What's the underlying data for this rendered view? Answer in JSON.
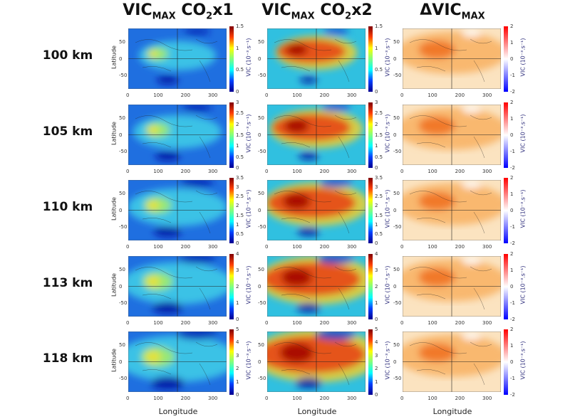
{
  "columns": [
    {
      "title": "VIC",
      "sub": "MAX",
      "suffix": " CO",
      "sub2": "2",
      "suffix2": "x1"
    },
    {
      "title": "VIC",
      "sub": "MAX",
      "suffix": " CO",
      "sub2": "2",
      "suffix2": "x2"
    },
    {
      "title": "ΔVIC",
      "sub": "MAX",
      "suffix": "",
      "sub2": "",
      "suffix2": ""
    }
  ],
  "rows": [
    {
      "label": "100 km",
      "cb_abs": [
        "0",
        "0.5",
        "1",
        "1.5"
      ]
    },
    {
      "label": "105 km",
      "cb_abs": [
        "0",
        "0.5",
        "1",
        "1.5",
        "2",
        "2.5",
        "3"
      ]
    },
    {
      "label": "110 km",
      "cb_abs": [
        "0",
        "0.5",
        "1",
        "1.5",
        "2",
        "2.5",
        "3",
        "3.5"
      ]
    },
    {
      "label": "113 km",
      "cb_abs": [
        "0",
        "1",
        "2",
        "3",
        "4"
      ]
    },
    {
      "label": "118 km",
      "cb_abs": [
        "0",
        "1",
        "2",
        "3",
        "4",
        "5"
      ]
    }
  ],
  "cb_diff": [
    "-2",
    "-1",
    "0",
    "1",
    "2"
  ],
  "colorbar_unit": "VIC (10⁻³.s⁻¹)",
  "x_ticks": [
    "0",
    "100",
    "200",
    "300"
  ],
  "y_ticks": [
    "50",
    "0",
    "-50"
  ],
  "xlabel": "Longitude",
  "ylabel": "Latitude",
  "colorscales": {
    "abs": "jet",
    "diff": "blue-white-red"
  }
}
